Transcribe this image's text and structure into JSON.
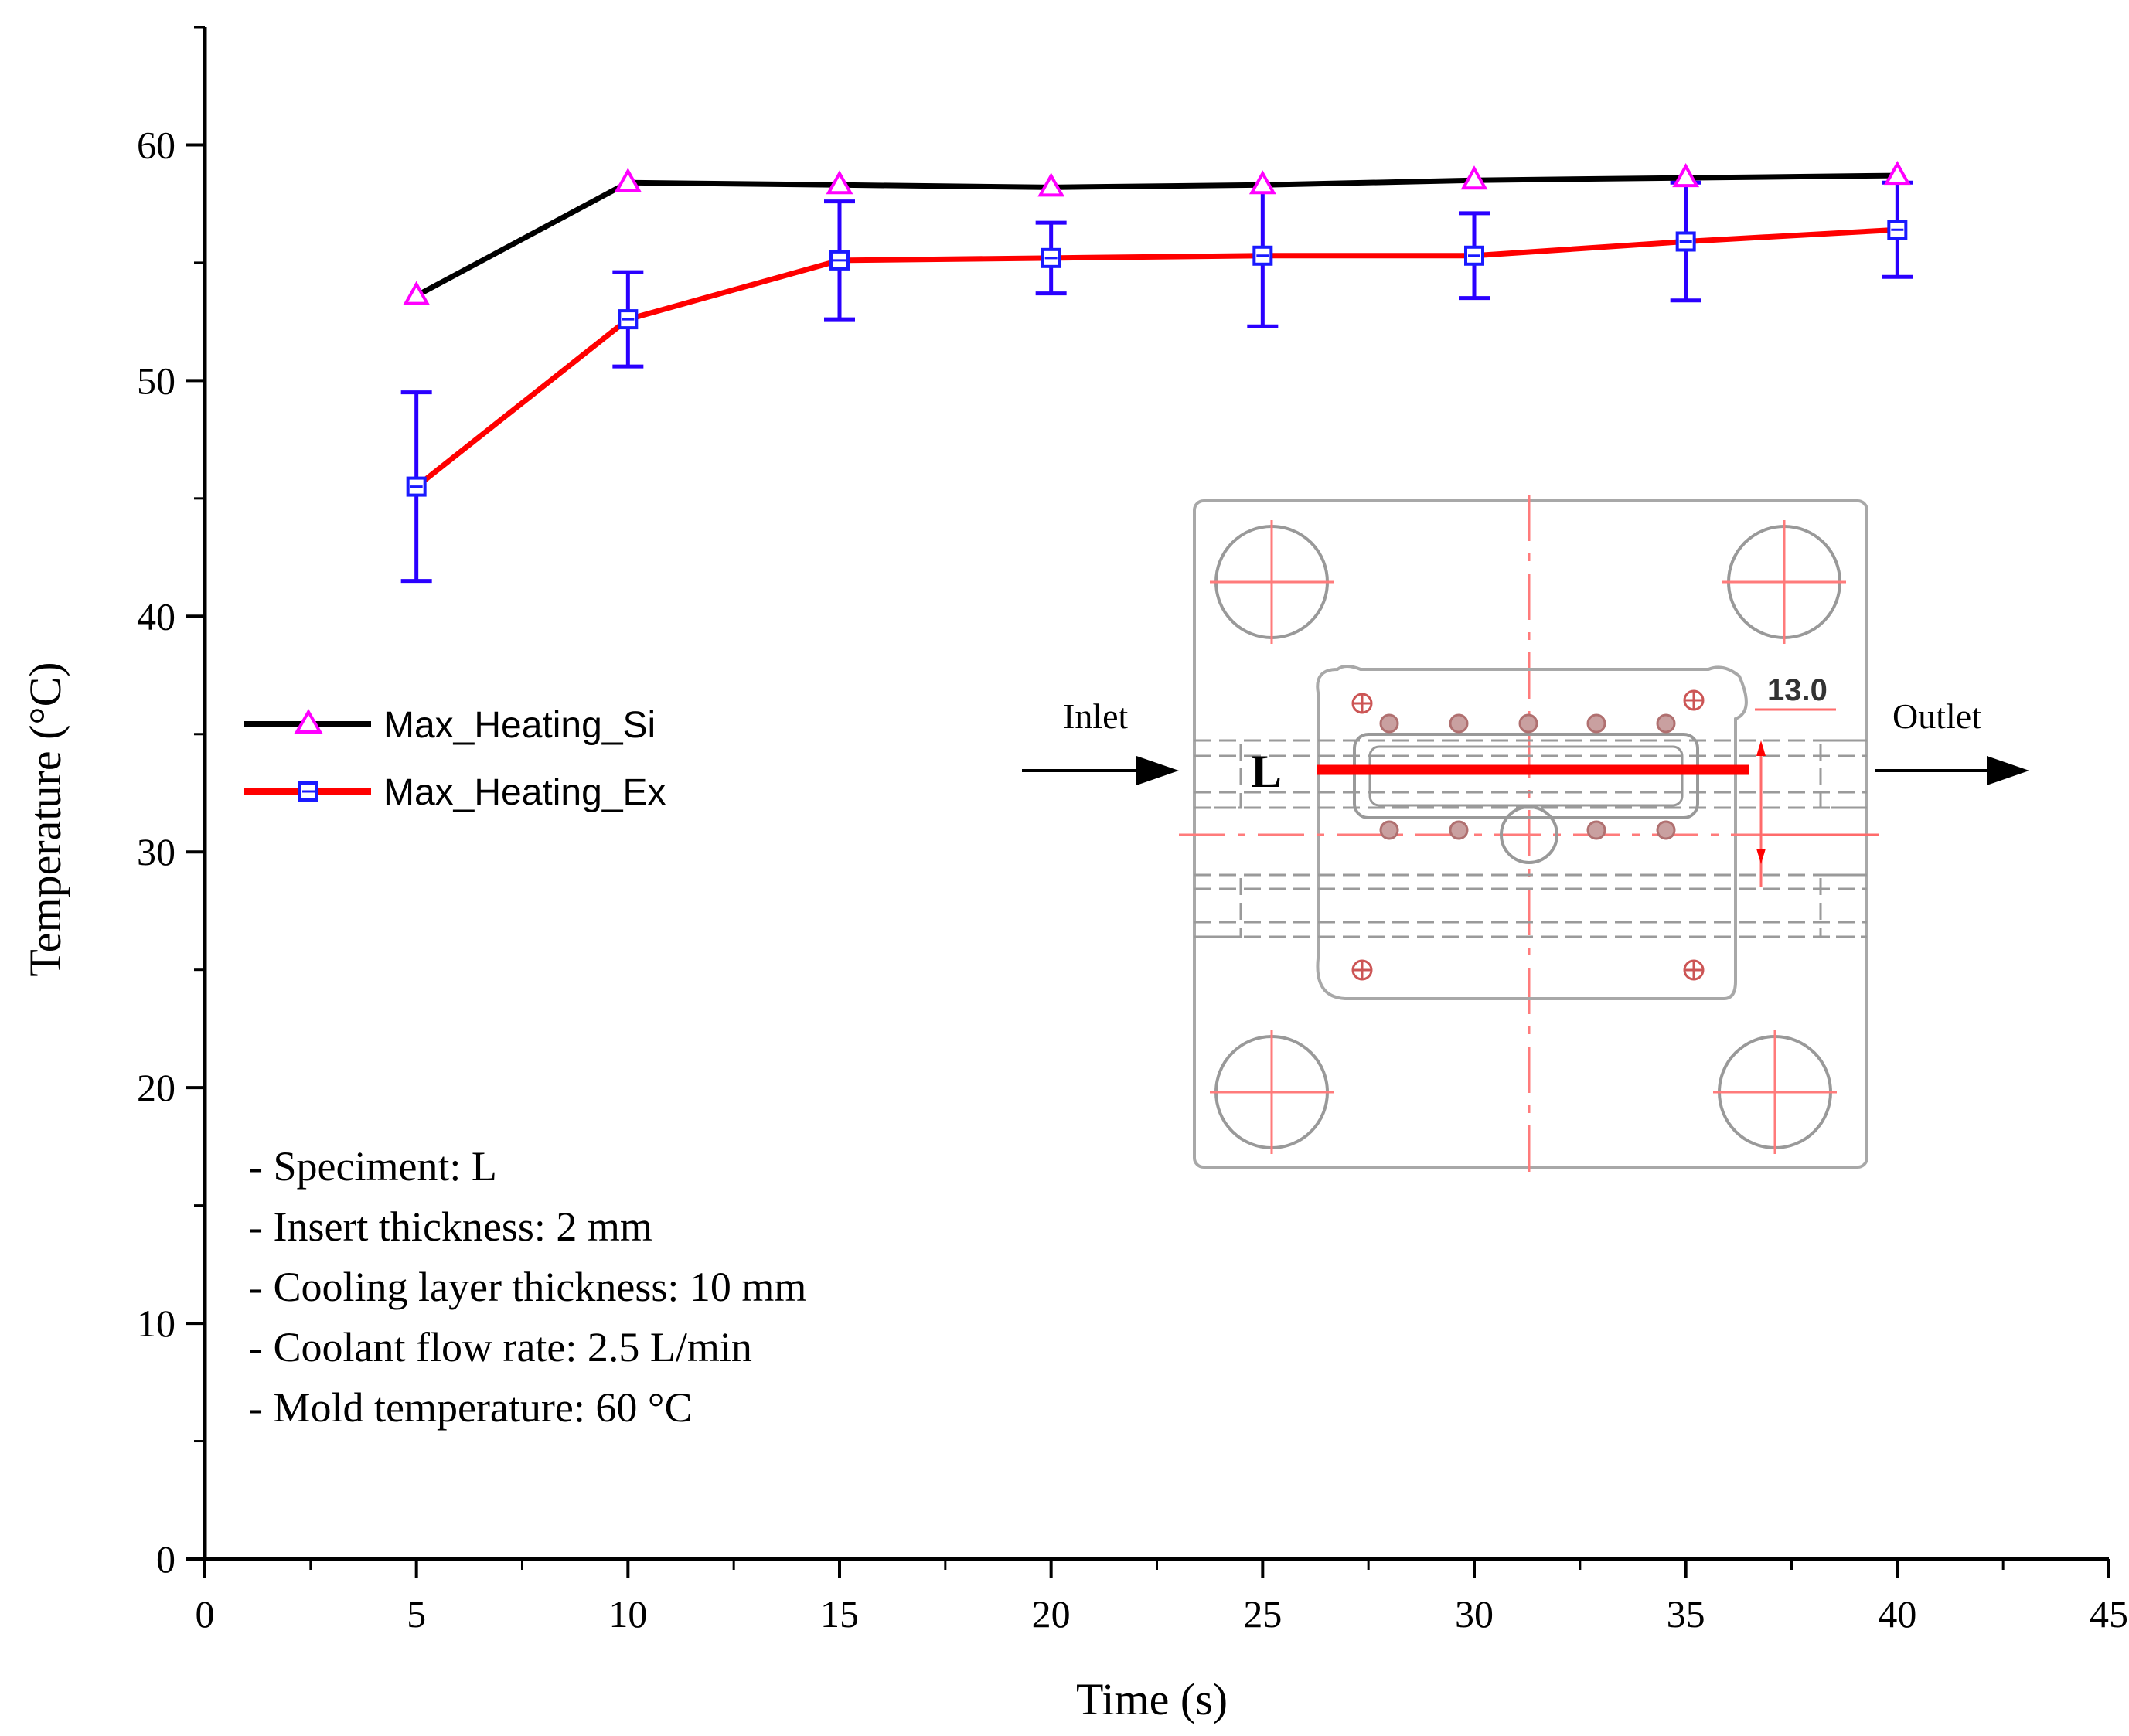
{
  "chart_data": {
    "type": "line",
    "title": "",
    "xlabel": "Time (s)",
    "ylabel": "Temperature (°C)",
    "xlim": [
      0,
      45
    ],
    "ylim": [
      0,
      65
    ],
    "xticks": [
      0,
      5,
      10,
      15,
      20,
      25,
      30,
      35,
      40,
      45
    ],
    "yticks": [
      0,
      10,
      20,
      30,
      40,
      50,
      60
    ],
    "x": [
      5,
      10,
      15,
      20,
      25,
      30,
      35,
      40
    ],
    "series": [
      {
        "name": "Max_Heating_Si",
        "values": [
          53.6,
          58.4,
          58.3,
          58.2,
          58.3,
          58.5,
          58.6,
          58.7
        ],
        "line_color": "#000000",
        "marker": "triangle",
        "marker_color": "#ff00ff"
      },
      {
        "name": "Max_Heating_Ex",
        "values": [
          45.5,
          52.6,
          55.1,
          55.2,
          55.3,
          55.3,
          55.9,
          56.4
        ],
        "error_low": [
          41.5,
          50.6,
          52.6,
          53.7,
          52.3,
          53.5,
          53.4,
          54.4
        ],
        "error_high": [
          49.5,
          54.6,
          57.6,
          56.7,
          58.3,
          57.1,
          58.4,
          58.4
        ],
        "line_color": "#ff0000",
        "marker": "square",
        "marker_color": "#1a1aff",
        "error_color": "#2a00ff"
      }
    ],
    "legend_position": "middle-left",
    "grid": false
  },
  "notes": [
    "- Speciment: L",
    "- Insert thickness: 2 mm",
    "- Cooling layer thickness: 10  mm",
    "- Coolant flow rate: 2.5 L/min",
    "- Mold temperature: 60 °C"
  ],
  "inset": {
    "inlet_label": "Inlet",
    "outlet_label": "Outlet",
    "specimen_label": "L",
    "dimension_label": "13.0",
    "accent_color": "#ff0000"
  }
}
